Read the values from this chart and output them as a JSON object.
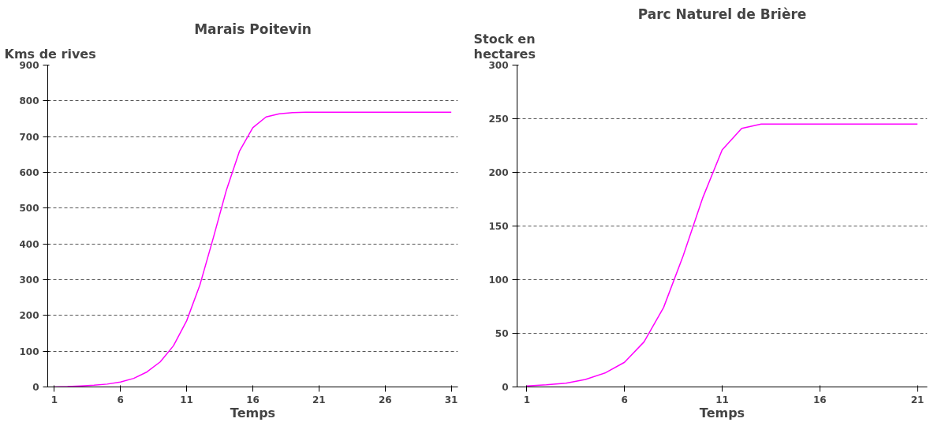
{
  "chart_data": [
    {
      "type": "line",
      "title": "Marais Poitevin",
      "ylabel": "Kms de rives",
      "xlabel": "Temps",
      "x": [
        1,
        2,
        3,
        4,
        5,
        6,
        7,
        8,
        9,
        10,
        11,
        12,
        13,
        14,
        15,
        16,
        17,
        18,
        19,
        20,
        21,
        22,
        23,
        24,
        25,
        26,
        27,
        28,
        29,
        30,
        31
      ],
      "series": [
        {
          "color": "#ff00ff",
          "values": [
            0,
            1,
            3,
            5,
            8,
            14,
            24,
            42,
            70,
            115,
            185,
            285,
            415,
            550,
            660,
            725,
            755,
            764,
            767,
            768,
            768,
            768,
            768,
            768,
            768,
            768,
            768,
            768,
            768,
            768,
            768
          ]
        }
      ],
      "xlim": [
        0.5,
        31.5
      ],
      "xticks": [
        1,
        6,
        11,
        16,
        21,
        26,
        31
      ],
      "ylim": [
        0,
        900
      ],
      "yticks": [
        0,
        100,
        200,
        300,
        400,
        500,
        600,
        700,
        800,
        900
      ],
      "grid": "y",
      "marker": "none",
      "line_style": "solid"
    },
    {
      "type": "line",
      "title": "Parc Naturel de Brière",
      "ylabel": "Stock en\nhectares",
      "xlabel": "Temps",
      "x": [
        1,
        2,
        3,
        4,
        5,
        6,
        7,
        8,
        9,
        10,
        11,
        12,
        13,
        14,
        15,
        16,
        17,
        18,
        19,
        20,
        21
      ],
      "series": [
        {
          "color": "#ff00ff",
          "values": [
            1,
            2,
            3.5,
            7,
            13,
            23,
            42,
            74,
            122,
            176,
            221,
            241,
            245,
            245,
            245,
            245,
            245,
            245,
            245,
            245,
            245
          ]
        }
      ],
      "xlim": [
        0.5,
        21.5
      ],
      "xticks": [
        1,
        6,
        11,
        16,
        21
      ],
      "ylim": [
        0,
        300
      ],
      "yticks": [
        0,
        50,
        100,
        150,
        200,
        250,
        300
      ],
      "grid": "y",
      "marker": "none",
      "line_style": "solid"
    }
  ]
}
